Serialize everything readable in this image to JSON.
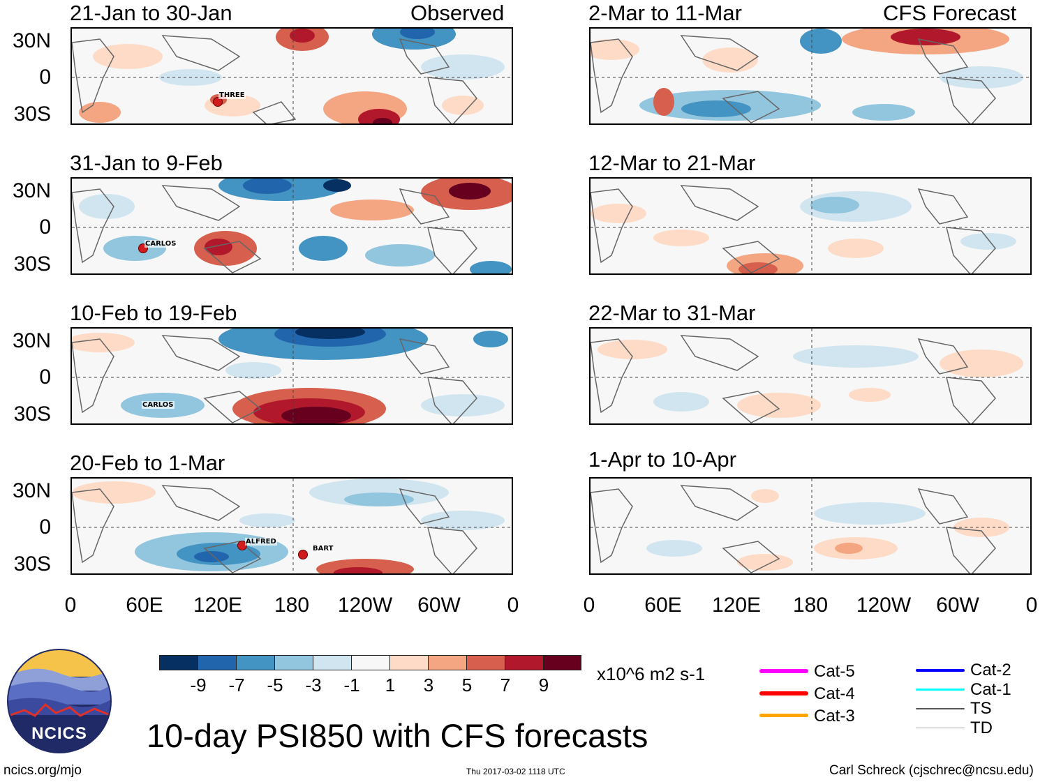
{
  "title": "10-day PSI850 with CFS forecasts",
  "observed_label": "Observed",
  "forecast_label": "CFS Forecast",
  "lat_labels": [
    "30N",
    "0",
    "30S"
  ],
  "lon_labels": [
    "0",
    "60E",
    "120E",
    "180",
    "120W",
    "60W",
    "0"
  ],
  "panels": [
    {
      "period": "21-Jan to 30-Jan",
      "storms": [
        "THREE"
      ]
    },
    {
      "period": "31-Jan to 9-Feb",
      "storms": [
        "CARLOS"
      ]
    },
    {
      "period": "10-Feb to 19-Feb",
      "storms": [
        "CARLOS"
      ]
    },
    {
      "period": "20-Feb to 1-Mar",
      "storms": [
        "ALFRED",
        "BART"
      ]
    },
    {
      "period": "2-Mar to 11-Mar",
      "storms": []
    },
    {
      "period": "12-Mar to 21-Mar",
      "storms": []
    },
    {
      "period": "22-Mar to 31-Mar",
      "storms": []
    },
    {
      "period": "1-Apr to 10-Apr",
      "storms": []
    }
  ],
  "colorbar": {
    "labels": [
      "-9",
      "-7",
      "-5",
      "-3",
      "-1",
      "1",
      "3",
      "5",
      "7",
      "9"
    ],
    "colors": [
      "#053061",
      "#2166ac",
      "#4393c3",
      "#92c5de",
      "#d1e5f0",
      "#f7f7f7",
      "#fddbc7",
      "#f4a582",
      "#d6604d",
      "#b2182b",
      "#67001f"
    ],
    "units": "x10^6 m2 s-1"
  },
  "legend": [
    {
      "label": "Cat-5",
      "color": "#ff00ff"
    },
    {
      "label": "Cat-4",
      "color": "#ff0000"
    },
    {
      "label": "Cat-3",
      "color": "#ffa500"
    },
    {
      "label": "Cat-2",
      "color": "#0000ff"
    },
    {
      "label": "Cat-1",
      "color": "#00ffff"
    },
    {
      "label": "TS",
      "color": "#555555"
    },
    {
      "label": "TD",
      "color": "#aaaaaa"
    }
  ],
  "logo_text": "NCICS",
  "footer": {
    "url": "ncics.org/mjo",
    "timestamp": "Thu 2017-03-02 1118 UTC",
    "credit": "Carl Schreck (cjschrec@ncsu.edu)"
  }
}
